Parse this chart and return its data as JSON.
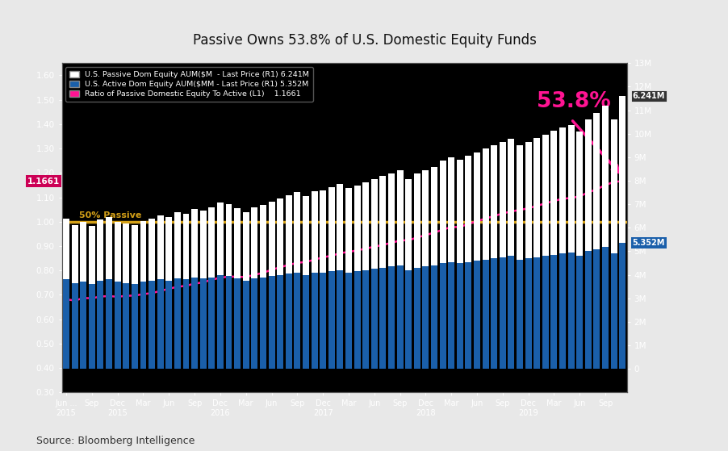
{
  "title": "Passive Owns 53.8% of U.S. Domestic Equity Funds",
  "source": "Source: Bloomberg Intelligence",
  "plot_bg": "#000000",
  "fig_bg": "#e8e8e8",
  "title_color": "#111111",
  "passive_color": "#ffffff",
  "active_color": "#1a5faa",
  "ratio_color": "#ff1493",
  "hline_color": "#d4a017",
  "hline_y": 1.0,
  "hline_label": "50% Passive",
  "last_passive_label": "6.241M",
  "last_active_label": "5.352M",
  "last_ratio_label": "1.1661",
  "annotation_text": "53.8%",
  "annotation_color": "#ff1493",
  "legend_passive": "U.S. Passive Dom Equity AUM($M  - Last Price (R1) 6.241M",
  "legend_active": "U.S. Active Dom Equity AUM($MM - Last Price (R1) 5.352M",
  "legend_ratio": "Ratio of Passive Domestic Equity To Active (L1)    1.1661",
  "left_ylim": [
    0.3,
    1.65
  ],
  "left_yticks": [
    0.3,
    0.4,
    0.5,
    0.6,
    0.7,
    0.8,
    0.9,
    1.0,
    1.1,
    1.2,
    1.3,
    1.4,
    1.5,
    1.6
  ],
  "right_ylim": [
    -1000000,
    13000000
  ],
  "right_ytick_vals": [
    0,
    1000000,
    2000000,
    3000000,
    4000000,
    5000000,
    6000000,
    7000000,
    8000000,
    9000000,
    10000000,
    11000000,
    12000000,
    13000000
  ],
  "right_ytick_labels": [
    "0",
    "1M",
    "2M",
    "3M",
    "4M",
    "5M",
    "6M",
    "7M",
    "8M",
    "9M",
    "10M",
    "11M",
    "12M",
    "13M"
  ],
  "active_aum": [
    3800000,
    3650000,
    3700000,
    3600000,
    3750000,
    3800000,
    3700000,
    3650000,
    3600000,
    3700000,
    3750000,
    3800000,
    3750000,
    3850000,
    3800000,
    3900000,
    3850000,
    3900000,
    4000000,
    3950000,
    3850000,
    3750000,
    3850000,
    3900000,
    3950000,
    4000000,
    4050000,
    4100000,
    4000000,
    4100000,
    4100000,
    4150000,
    4200000,
    4100000,
    4150000,
    4200000,
    4250000,
    4300000,
    4350000,
    4400000,
    4200000,
    4300000,
    4350000,
    4400000,
    4500000,
    4550000,
    4500000,
    4550000,
    4600000,
    4650000,
    4700000,
    4750000,
    4800000,
    4650000,
    4700000,
    4750000,
    4800000,
    4850000,
    4900000,
    4950000,
    4800000,
    5000000,
    5100000,
    5200000,
    4900000,
    5352000
  ],
  "passive_aum": [
    2590000,
    2470000,
    2540000,
    2470000,
    2600000,
    2640000,
    2560000,
    2540000,
    2510000,
    2600000,
    2650000,
    2720000,
    2720000,
    2820000,
    2800000,
    2910000,
    2890000,
    2970000,
    3080000,
    3060000,
    2980000,
    2900000,
    3010000,
    3080000,
    3170000,
    3250000,
    3330000,
    3410000,
    3340000,
    3460000,
    3500000,
    3570000,
    3660000,
    3590000,
    3660000,
    3740000,
    3810000,
    3890000,
    3970000,
    4060000,
    3880000,
    4020000,
    4110000,
    4200000,
    4350000,
    4450000,
    4400000,
    4510000,
    4610000,
    4710000,
    4810000,
    4910000,
    5000000,
    4870000,
    4960000,
    5060000,
    5160000,
    5260000,
    5360000,
    5430000,
    5300000,
    5600000,
    5780000,
    5980000,
    5700000,
    6241000
  ],
  "ratio_vals": [
    0.682,
    0.676,
    0.687,
    0.686,
    0.693,
    0.695,
    0.692,
    0.696,
    0.697,
    0.703,
    0.707,
    0.716,
    0.725,
    0.733,
    0.737,
    0.746,
    0.751,
    0.762,
    0.77,
    0.775,
    0.774,
    0.773,
    0.782,
    0.79,
    0.803,
    0.813,
    0.823,
    0.831,
    0.835,
    0.844,
    0.854,
    0.86,
    0.871,
    0.876,
    0.882,
    0.89,
    0.897,
    0.905,
    0.913,
    0.923,
    0.924,
    0.935,
    0.945,
    0.955,
    0.967,
    0.978,
    0.978,
    0.991,
    1.002,
    1.013,
    1.023,
    1.034,
    1.042,
    1.048,
    1.055,
    1.065,
    1.075,
    1.085,
    1.094,
    1.097,
    1.104,
    1.12,
    1.133,
    1.15,
    1.163,
    1.1661
  ]
}
